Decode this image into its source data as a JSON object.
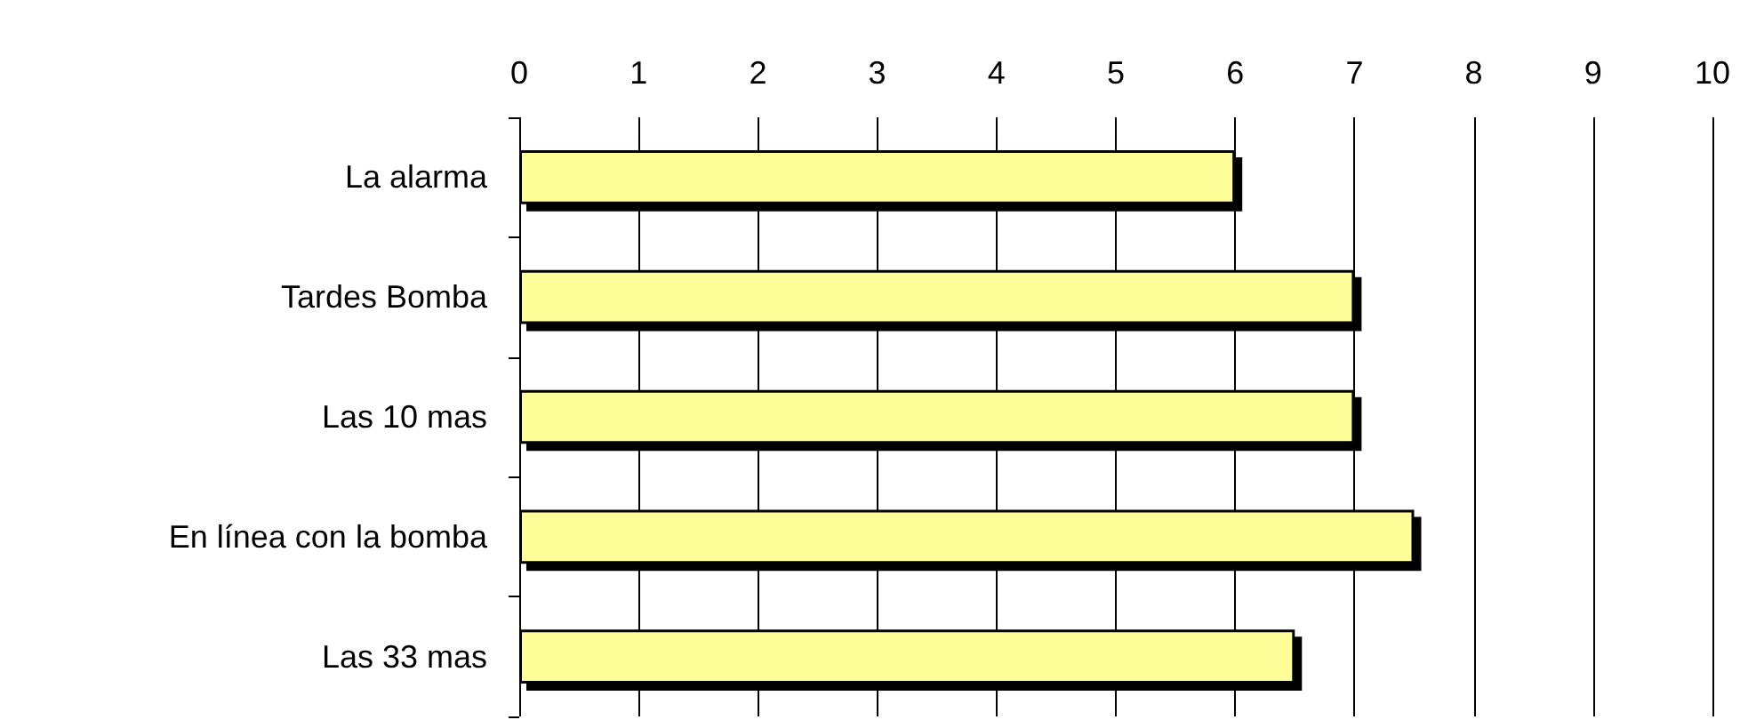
{
  "chart_data": {
    "type": "bar",
    "orientation": "horizontal",
    "categories": [
      "La alarma",
      "Tardes Bomba",
      "Las 10 mas",
      "En línea con la bomba",
      "Las 33 mas"
    ],
    "values": [
      6,
      7,
      7,
      7.5,
      6.5
    ],
    "color": "#ffff99",
    "xlim": [
      0,
      10
    ],
    "xticks": [
      0,
      1,
      2,
      3,
      4,
      5,
      6,
      7,
      8,
      9,
      10
    ],
    "grid": "x"
  }
}
